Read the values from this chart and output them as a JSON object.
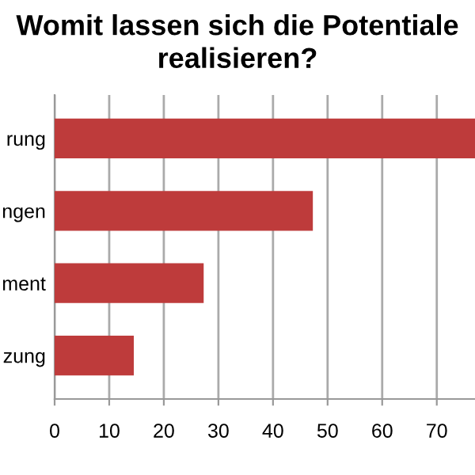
{
  "chart_data": {
    "type": "bar",
    "orientation": "horizontal",
    "title": "Womit lassen sich die Potentiale\nrealisieren?",
    "categories": [
      "rung",
      "ngen",
      "ment",
      "zung"
    ],
    "values": [
      77,
      47.3,
      27.3,
      14.5
    ],
    "color": "#be3b3b",
    "xlim": [
      0,
      77
    ],
    "xticks": [
      0,
      10,
      20,
      30,
      40,
      50,
      60,
      70
    ],
    "grid": "x"
  }
}
